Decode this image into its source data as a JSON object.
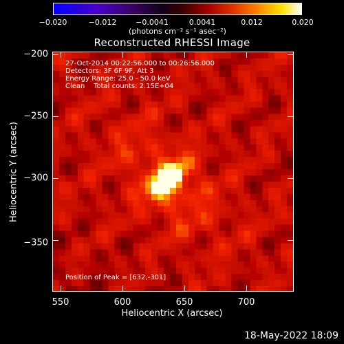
{
  "colorbar": {
    "ticks": [
      "−0.020",
      "−0.012",
      "−0.0041",
      "0.0041",
      "0.012",
      "0.020"
    ],
    "unit": "(photons cm⁻² s⁻¹ asec⁻²)"
  },
  "title": "Reconstructed RHESSI Image",
  "info": {
    "line1": "27-Oct-2014 00:22:56.000 to 00:26:56.000",
    "line2": "Detectors: 3F 6F 9F, Att 3",
    "line3": "Energy Range: 25.0 - 50.0 keV",
    "line4": "Clean    Total counts: 2.15E+04",
    "peak": "Position of Peak = [632,-301]"
  },
  "axes": {
    "xlabel": "Heliocentric X (arcsec)",
    "ylabel": "Heliocentric Y (arcsec)",
    "xticks": [
      "550",
      "600",
      "650",
      "700"
    ],
    "yticks": [
      "−200",
      "−250",
      "−300",
      "−350"
    ]
  },
  "chart_data": {
    "type": "heatmap",
    "title": "Reconstructed RHESSI Image",
    "xlabel": "Heliocentric X (arcsec)",
    "ylabel": "Heliocentric Y (arcsec)",
    "xlim": [
      537,
      735
    ],
    "ylim": [
      -390,
      -196
    ],
    "colorscale_range": [
      -0.02,
      0.02
    ],
    "peak": {
      "x": 632,
      "y": -301
    },
    "colormap": "black-red-orange-yellow-white (positive), blue-purple (negative)"
  },
  "timestamp": "18-May-2022 18:09"
}
